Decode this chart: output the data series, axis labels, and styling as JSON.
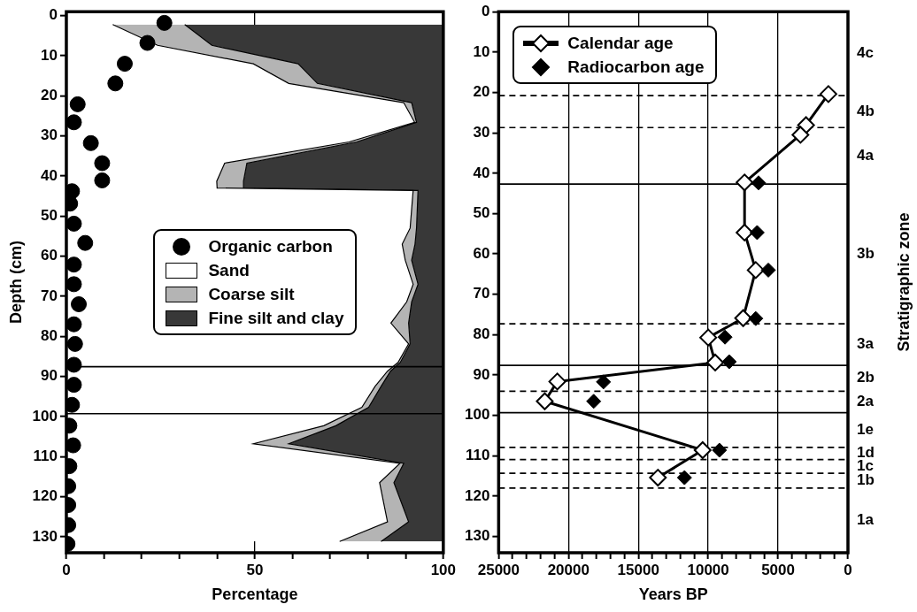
{
  "chart_data": [
    {
      "type": "area",
      "orientation": "horizontal",
      "stacked": true,
      "xlabel": "Percentage",
      "ylabel": "Depth (cm)",
      "xlim": [
        0,
        100
      ],
      "xticks": [
        0,
        {
          "value": 10,
          "label": null
        },
        {
          "value": 20,
          "label": null
        },
        {
          "value": 30,
          "label": null
        },
        {
          "value": 40,
          "label": null
        },
        50,
        {
          "value": 60,
          "label": null
        },
        {
          "value": 70,
          "label": null
        },
        {
          "value": 80,
          "label": null
        },
        {
          "value": 90,
          "label": null
        },
        100
      ],
      "ylim": [
        134,
        -1
      ],
      "yticks": [
        0,
        10,
        20,
        30,
        40,
        50,
        60,
        70,
        80,
        90,
        100,
        110,
        120,
        130
      ],
      "grid": "x",
      "legend": "center",
      "series": [
        {
          "name": "Organic carbon",
          "type": "scatter",
          "marker": "circle",
          "color": "#000000",
          "x": [
            1.8,
            6.8,
            12,
            16.9,
            22.1,
            26.6,
            31.8,
            36.8,
            41.1,
            43.8,
            46.9,
            51.9,
            56.7,
            62.1,
            67,
            72,
            77,
            81.9,
            87.1,
            92.1,
            97.1,
            102.3,
            107.2,
            112.4,
            117.4,
            122.1,
            127.1,
            131.8
          ],
          "values": [
            26,
            21.5,
            15.5,
            13,
            3,
            2,
            6.5,
            9.5,
            9.5,
            1.5,
            1,
            2,
            5,
            2,
            2,
            3.3,
            2,
            2.3,
            2,
            2,
            1.5,
            0.8,
            1.8,
            0.8,
            0.5,
            0.5,
            0.5,
            0.3
          ]
        },
        {
          "name": "Sand",
          "color": "#ffffff",
          "x": [
            2.2,
            7.4,
            12,
            16.9,
            21.7,
            26.6,
            31.5,
            36.8,
            41.3,
            43,
            43.6,
            53,
            57,
            61,
            67,
            71.4,
            76.7,
            81.9,
            86.5,
            88.7,
            92.5,
            97.7,
            102.3,
            106.8,
            111.7,
            116.5,
            126.3,
            131.2
          ],
          "values": [
            12.3,
            24.2,
            49.6,
            59,
            89.5,
            92.4,
            75,
            42,
            39.9,
            40,
            92,
            91.2,
            89.1,
            89.9,
            92,
            90.3,
            86.1,
            90.8,
            88,
            85.2,
            81.9,
            78.4,
            68.3,
            49.6,
            88.5,
            83.1,
            85.2,
            72.5
          ]
        },
        {
          "name": "Coarse silt",
          "color": "#b4b4b4",
          "x": [
            2.2,
            7.4,
            12,
            16.9,
            21.7,
            26.6,
            31.5,
            36.8,
            41.3,
            43,
            43.6,
            53,
            57,
            61,
            67,
            71.4,
            76.7,
            81.9,
            86.5,
            88.7,
            92.5,
            97.7,
            102.3,
            106.8,
            111.7,
            116.5,
            126.3,
            131.2
          ],
          "values": [
            19.1,
            14.4,
            11.9,
            7.6,
            2.1,
            0.5,
            2,
            5.9,
            7.1,
            7,
            1.3,
            1.7,
            3.4,
            1.7,
            1.3,
            1.3,
            4.7,
            0.4,
            0.6,
            0.8,
            1.6,
            1.8,
            3.2,
            9.4,
            1,
            3.8,
            5.6,
            11
          ]
        },
        {
          "name": "Fine silt and clay",
          "color": "#383838",
          "x": [
            2.2,
            7.4,
            12,
            16.9,
            21.7,
            26.6,
            31.5,
            36.8,
            41.3,
            43,
            43.6,
            53,
            57,
            61,
            67,
            71.4,
            76.7,
            81.9,
            86.5,
            88.7,
            92.5,
            97.7,
            102.3,
            106.8,
            111.7,
            116.5,
            126.3,
            131.2
          ],
          "values": [
            68.6,
            61.4,
            38.5,
            33.4,
            8.4,
            7.1,
            23,
            52.1,
            53,
            53,
            6.7,
            7.1,
            7.5,
            8.4,
            6.7,
            8.4,
            9.2,
            8.8,
            11.4,
            14,
            16.5,
            19.8,
            28.5,
            41,
            10.5,
            13.1,
            9.2,
            16.5
          ]
        }
      ],
      "ref_lines": [
        {
          "axis": "y",
          "value": 87.6,
          "line_style": "solid"
        },
        {
          "axis": "y",
          "value": 99.3,
          "line_style": "solid"
        }
      ]
    },
    {
      "type": "line",
      "orientation": "horizontal",
      "xlabel": "Years BP",
      "y2label": "Stratigraphic zone",
      "xlim": [
        25000,
        0
      ],
      "xticks": [
        25000,
        {
          "value": 24000,
          "label": null
        },
        {
          "value": 23000,
          "label": null
        },
        {
          "value": 22000,
          "label": null
        },
        {
          "value": 21000,
          "label": null
        },
        20000,
        {
          "value": 19000,
          "label": null
        },
        {
          "value": 18000,
          "label": null
        },
        {
          "value": 17000,
          "label": null
        },
        {
          "value": 16000,
          "label": null
        },
        15000,
        {
          "value": 14000,
          "label": null
        },
        {
          "value": 13000,
          "label": null
        },
        {
          "value": 12000,
          "label": null
        },
        {
          "value": 11000,
          "label": null
        },
        10000,
        {
          "value": 9000,
          "label": null
        },
        {
          "value": 8000,
          "label": null
        },
        {
          "value": 7000,
          "label": null
        },
        {
          "value": 6000,
          "label": null
        },
        5000,
        {
          "value": 4000,
          "label": null
        },
        {
          "value": 3000,
          "label": null
        },
        {
          "value": 2000,
          "label": null
        },
        {
          "value": 1000,
          "label": null
        },
        0
      ],
      "ylim": [
        134,
        0
      ],
      "yticks": [
        0,
        10,
        20,
        30,
        40,
        50,
        60,
        70,
        80,
        90,
        100,
        110,
        120,
        130
      ],
      "grid": "x",
      "legend": "top left",
      "series": [
        {
          "name": "Calendar age",
          "marker": "diamond",
          "color": "#000000",
          "x": [
            20.4,
            28.1,
            30.5,
            42.3,
            54.7,
            64,
            75.9,
            80.7,
            86.9,
            91.6,
            96.5,
            108.6,
            115.4
          ],
          "values": [
            1400,
            3000,
            3400,
            7400,
            7400,
            6600,
            7500,
            10000,
            9500,
            20800,
            21700,
            10400,
            13600
          ]
        },
        {
          "name": "Radiocarbon age",
          "type": "scatter",
          "marker": "diamond",
          "color": "#000000",
          "x": [
            42.4,
            54.7,
            64,
            76,
            80.6,
            86.7,
            91.7,
            96.5,
            108.6,
            115.4
          ],
          "values": [
            6400,
            6500,
            5700,
            6600,
            8800,
            8500,
            17500,
            18200,
            9200,
            11700
          ]
        }
      ],
      "ref_lines": [
        {
          "axis": "y",
          "value": 20.8,
          "line_style": "dashed"
        },
        {
          "axis": "y",
          "value": 28.7,
          "line_style": "dashed"
        },
        {
          "axis": "y",
          "value": 42.7,
          "line_style": "solid"
        },
        {
          "axis": "y",
          "value": 77.3,
          "line_style": "dashed"
        },
        {
          "axis": "y",
          "value": 87.6,
          "line_style": "solid"
        },
        {
          "axis": "y",
          "value": 94,
          "line_style": "dashed"
        },
        {
          "axis": "y",
          "value": 99.3,
          "line_style": "solid"
        },
        {
          "axis": "y",
          "value": 107.9,
          "line_style": "dashed"
        },
        {
          "axis": "y",
          "value": 110.9,
          "line_style": "dashed"
        },
        {
          "axis": "y",
          "value": 114.3,
          "line_style": "dashed"
        },
        {
          "axis": "y",
          "value": 118,
          "line_style": "dashed"
        }
      ],
      "annotations": [
        "4c",
        "4b",
        "4a",
        "3b",
        "3a",
        "2b",
        "2a",
        "1e",
        "1d",
        "1c",
        "1b",
        "1a"
      ]
    }
  ]
}
